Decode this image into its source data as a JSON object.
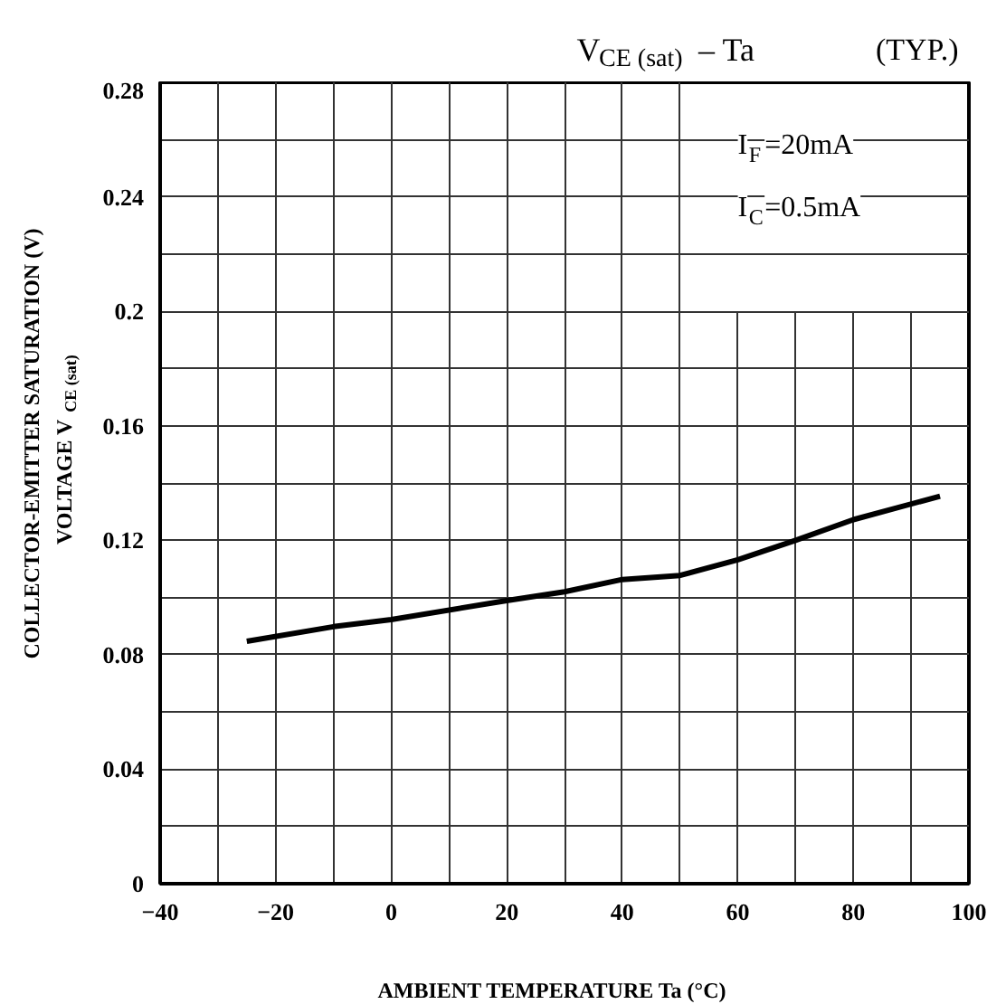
{
  "chart_data": {
    "type": "line",
    "title": "V$_{CE (sat)}$ – Ta",
    "xlabel": "AMBIENT TEMPERATURE   Ta   (°C)",
    "ylabel": "COLLECTOR-EMITTER SATURATION   (V)\nVOLTAGE   V$_{CE (sat)}$",
    "annotations": [
      "(TYP.)",
      "I$_{F}$=20mA",
      "I$_{C}$=0.5mA"
    ],
    "x": [
      -25,
      -10,
      0,
      20,
      30,
      40,
      50,
      60,
      70,
      80,
      95
    ],
    "series": [
      {
        "color": "#000000",
        "values": [
          0.0847,
          0.0898,
          0.0923,
          0.0989,
          0.102,
          0.1063,
          0.1077,
          0.1132,
          0.12,
          0.1272,
          0.1354
        ]
      }
    ],
    "xlim": [
      -40,
      100
    ],
    "xticks": [
      {
        "value": -40,
        "label": "−40"
      },
      {
        "value": -30,
        "label": null
      },
      {
        "value": -20,
        "label": "−20"
      },
      {
        "value": -10,
        "label": null
      },
      0,
      {
        "value": 10,
        "label": null
      },
      20,
      {
        "value": 30,
        "label": null
      },
      40,
      {
        "value": 50,
        "label": null
      },
      60,
      {
        "value": 70,
        "label": null
      },
      80,
      {
        "value": 90,
        "label": null
      },
      100
    ],
    "ylim": [
      0,
      0.28
    ],
    "yticks": [
      0,
      {
        "value": 0.02,
        "label": null
      },
      0.04,
      {
        "value": 0.06,
        "label": null
      },
      0.08,
      {
        "value": 0.1,
        "label": null
      },
      0.12,
      {
        "value": 0.14,
        "label": null
      },
      0.16,
      {
        "value": 0.18,
        "label": null
      },
      0.2,
      {
        "value": 0.22,
        "label": null
      },
      0.24,
      {
        "value": 0.26,
        "label": null
      },
      0.28
    ],
    "grid": true,
    "marker": "none",
    "line_style": "solid"
  }
}
